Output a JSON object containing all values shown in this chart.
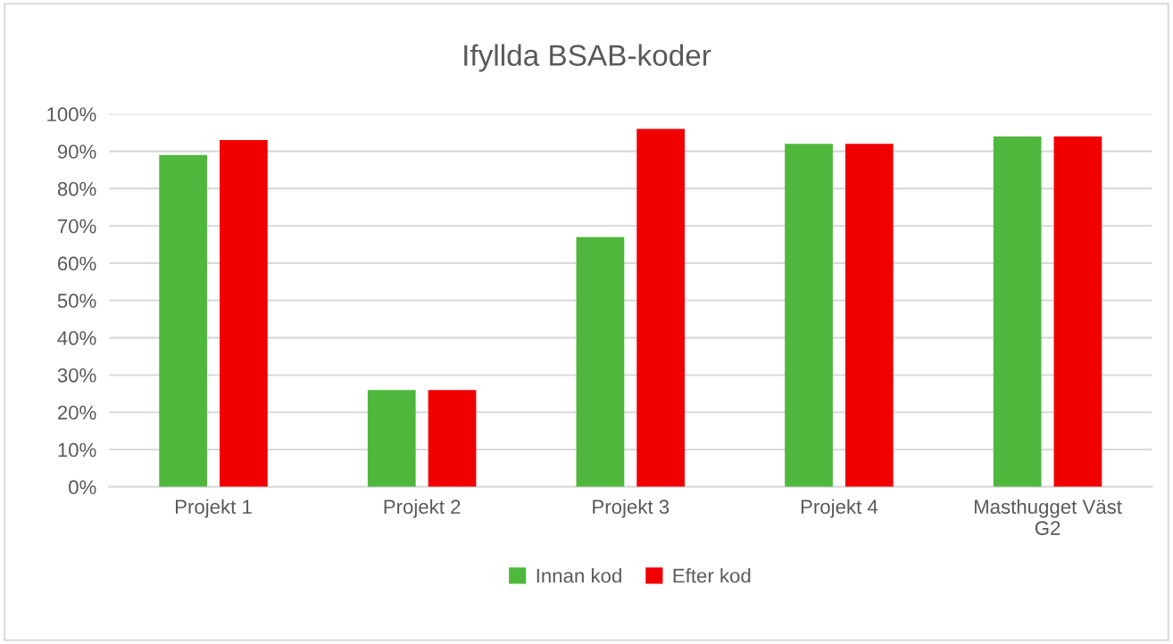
{
  "chart_data": {
    "type": "bar",
    "title": "Ifyllda BSAB-koder",
    "categories": [
      "Projekt 1",
      "Projekt 2",
      "Projekt 3",
      "Projekt 4",
      "Masthugget Väst\nG2"
    ],
    "series": [
      {
        "name": "Innan kod",
        "color": "#4fb83c",
        "values": [
          89,
          26,
          67,
          92,
          94
        ]
      },
      {
        "name": "Efter kod",
        "color": "#f00000",
        "values": [
          93,
          26,
          96,
          92,
          94
        ]
      }
    ],
    "ylim": [
      0,
      100
    ],
    "yticks": [
      {
        "value": 0,
        "label": "0%"
      },
      {
        "value": 10,
        "label": "10%"
      },
      {
        "value": 20,
        "label": "20%"
      },
      {
        "value": 30,
        "label": "30%"
      },
      {
        "value": 40,
        "label": "40%"
      },
      {
        "value": 50,
        "label": "50%"
      },
      {
        "value": 60,
        "label": "60%"
      },
      {
        "value": 70,
        "label": "70%"
      },
      {
        "value": 80,
        "label": "80%"
      },
      {
        "value": 90,
        "label": "90%"
      },
      {
        "value": 100,
        "label": "100%"
      }
    ],
    "grid": "y",
    "legend": "bottom"
  }
}
